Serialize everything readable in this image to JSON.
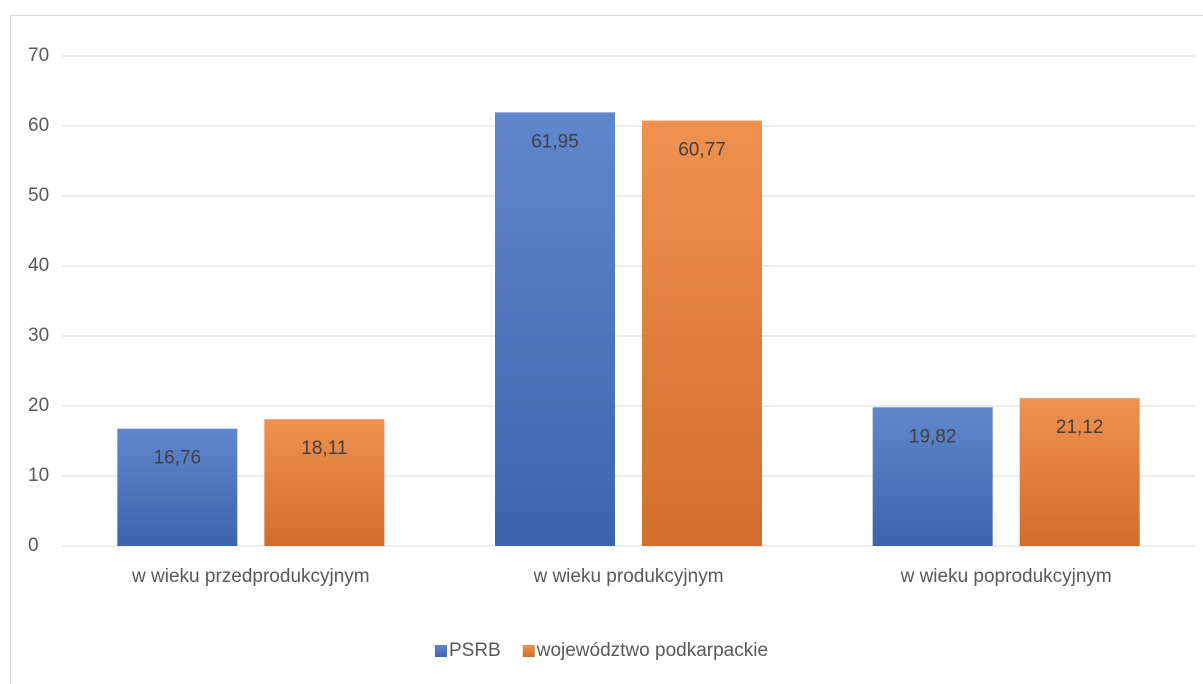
{
  "chart_data": {
    "type": "bar",
    "categories": [
      "w wieku przedprodukcyjnym",
      "w wieku produkcyjnym",
      "w wieku poprodukcyjnym"
    ],
    "series": [
      {
        "name": "PSRB",
        "color": "#4472c4",
        "values": [
          16.76,
          61.95,
          19.82
        ],
        "value_labels": [
          "16,76",
          "61,95",
          "19,82"
        ]
      },
      {
        "name": "województwo podkarpackie",
        "color": "#ed7d31",
        "values": [
          18.11,
          60.77,
          21.12
        ],
        "value_labels": [
          "18,11",
          "60,77",
          "21,12"
        ]
      }
    ],
    "ylim": [
      0,
      70
    ],
    "yticks": [
      0,
      10,
      20,
      30,
      40,
      50,
      60,
      70
    ],
    "grid": true,
    "legend": "bottom"
  }
}
